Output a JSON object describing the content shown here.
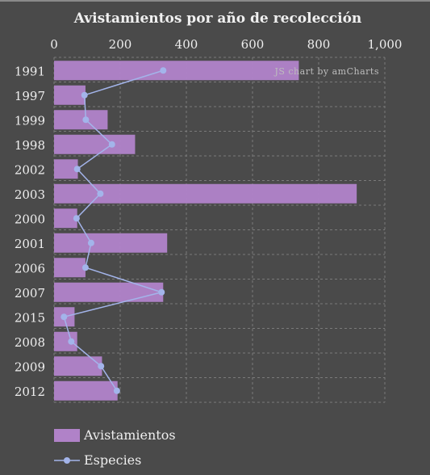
{
  "chart_data": {
    "type": "bar",
    "title": "Avistamientos por año de recolección",
    "watermark": "JS chart by amCharts",
    "orientation": "horizontal",
    "categories": [
      "1991",
      "1997",
      "1999",
      "1998",
      "2002",
      "2003",
      "2000",
      "2001",
      "2006",
      "2007",
      "2015",
      "2008",
      "2009",
      "2012"
    ],
    "xlim": [
      0,
      1000
    ],
    "xticks": [
      "0",
      "200",
      "400",
      "600",
      "800",
      "1,000"
    ],
    "grid": true,
    "legend_position": "bottom-left",
    "series": [
      {
        "name": "Avistamientos",
        "type": "bar",
        "color": "#b082c8",
        "values": [
          740,
          95,
          162,
          245,
          72,
          915,
          70,
          342,
          95,
          330,
          62,
          70,
          145,
          192
        ]
      },
      {
        "name": "Especies",
        "type": "line",
        "color": "#a3b4ea",
        "values": [
          330,
          92,
          96,
          175,
          70,
          140,
          68,
          112,
          95,
          325,
          30,
          52,
          142,
          190
        ]
      }
    ]
  }
}
